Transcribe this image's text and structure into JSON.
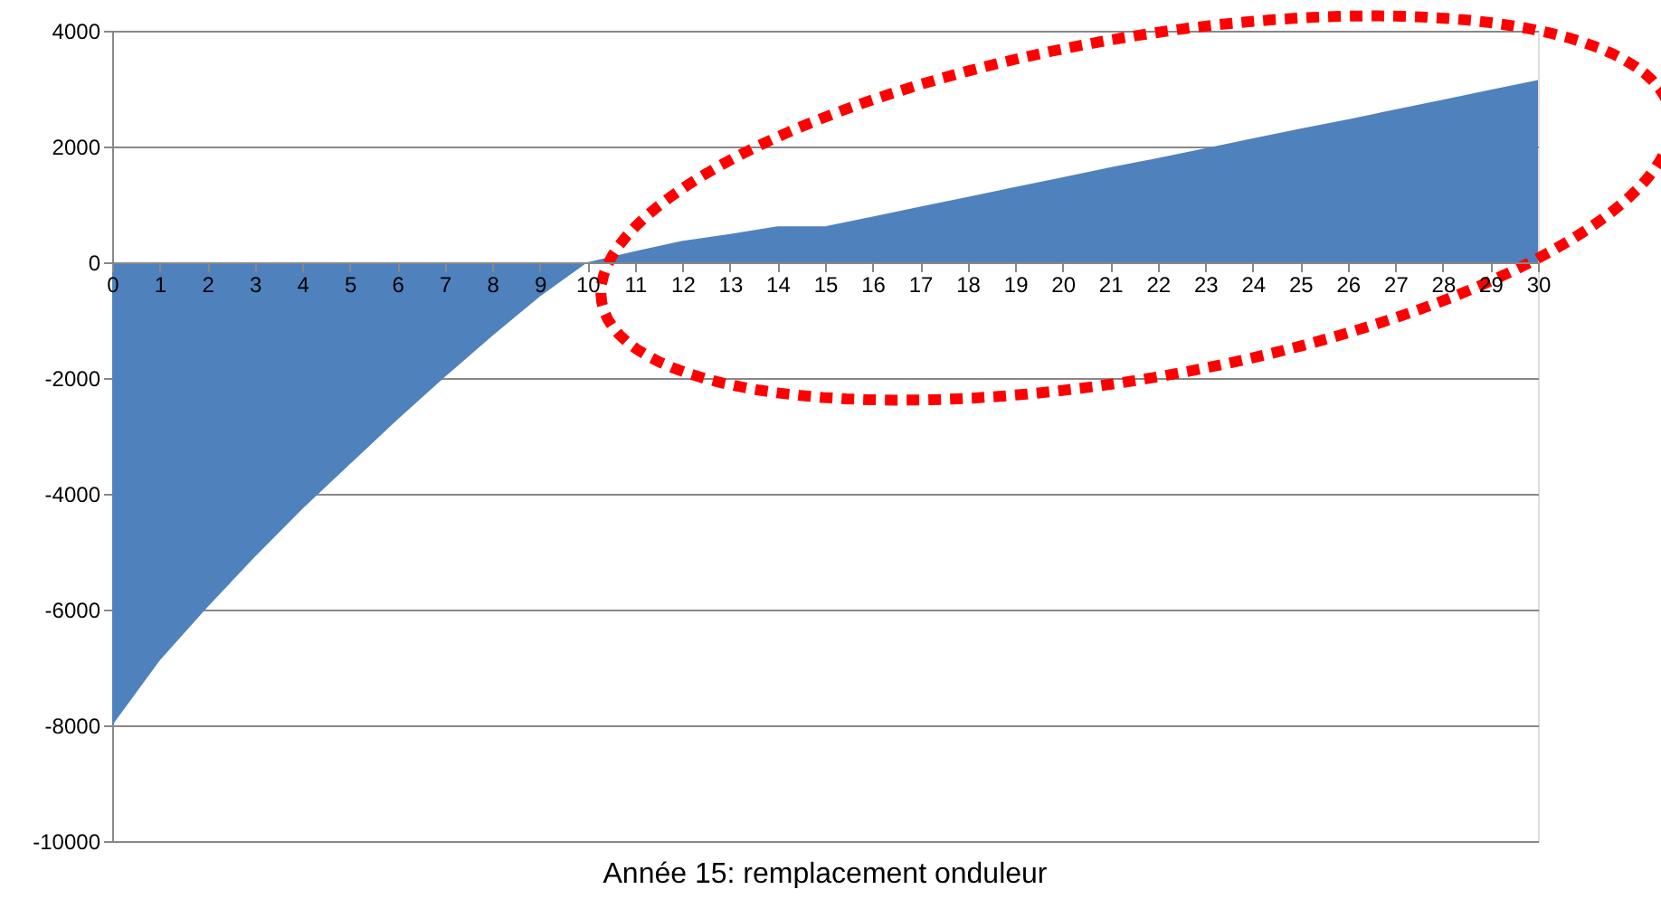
{
  "chart_data": {
    "type": "area",
    "xlabel": "Année 15: remplacement onduleur",
    "x": [
      0,
      1,
      2,
      3,
      4,
      5,
      6,
      7,
      8,
      9,
      10,
      11,
      12,
      13,
      14,
      15,
      16,
      17,
      18,
      19,
      20,
      21,
      22,
      23,
      24,
      25,
      26,
      27,
      28,
      29,
      30
    ],
    "series": [
      {
        "color": "#4f81bd",
        "values": [
          -8000,
          -6880,
          -5960,
          -5090,
          -4260,
          -3490,
          -2720,
          -1980,
          -1270,
          -590,
          0,
          190,
          370,
          490,
          620,
          620,
          790,
          960,
          1130,
          1300,
          1470,
          1640,
          1800,
          1970,
          2140,
          2310,
          2470,
          2640,
          2810,
          2980,
          3150
        ]
      }
    ],
    "xlim": [
      0,
      30
    ],
    "xticks": [
      0,
      1,
      2,
      3,
      4,
      5,
      6,
      7,
      8,
      9,
      10,
      11,
      12,
      13,
      14,
      15,
      16,
      17,
      18,
      19,
      20,
      21,
      22,
      23,
      24,
      25,
      26,
      27,
      28,
      29,
      30
    ],
    "ylim": [
      -10000,
      4000
    ],
    "yticks": [
      -10000,
      -8000,
      -6000,
      -4000,
      -2000,
      0,
      2000,
      4000
    ],
    "grid": "y"
  }
}
